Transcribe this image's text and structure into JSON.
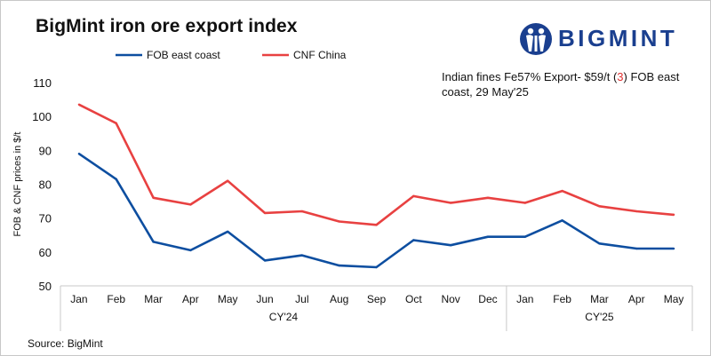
{
  "header": {
    "title": "BigMint iron ore export index",
    "logo_text": "BIGMINT"
  },
  "annotation": {
    "pre": "Indian fines Fe57% Export- $59/t (",
    "highlight": "3",
    "post": ") FOB east coast, 29 May'25"
  },
  "footer": {
    "source": "Source: BigMint"
  },
  "colors": {
    "fob": "#0d4ea0",
    "cnf": "#e84141",
    "logo": "#1a3f8f",
    "grid": "#d9d9d9"
  },
  "chart_data": {
    "type": "line",
    "title": "BigMint iron ore export index",
    "xlabel": "",
    "ylabel": "FOB & CNF prices in $/t",
    "categories": [
      "Jan",
      "Feb",
      "Mar",
      "Apr",
      "May",
      "Jun",
      "Jul",
      "Aug",
      "Sep",
      "Oct",
      "Nov",
      "Dec",
      "Jan",
      "Feb",
      "Mar",
      "Apr",
      "May"
    ],
    "groups": [
      {
        "label": "CY'24",
        "start": 0,
        "end": 11
      },
      {
        "label": "CY'25",
        "start": 12,
        "end": 16
      }
    ],
    "ylim": [
      50,
      110
    ],
    "yticks": [
      50,
      60,
      70,
      80,
      90,
      100,
      110
    ],
    "grid": false,
    "legend_position": "top",
    "series": [
      {
        "name": "FOB east coast",
        "color": "#0d4ea0",
        "values": [
          89,
          81.5,
          63,
          60.5,
          66,
          57.5,
          59,
          56,
          55.5,
          63.5,
          62,
          64.5,
          64.5,
          69.3,
          62.5,
          61,
          61
        ]
      },
      {
        "name": "CNF China",
        "color": "#e84141",
        "values": [
          103.5,
          98,
          76,
          74,
          81,
          71.5,
          72,
          69,
          68,
          76.5,
          74.5,
          76,
          74.5,
          78,
          73.5,
          72,
          71
        ]
      }
    ]
  }
}
